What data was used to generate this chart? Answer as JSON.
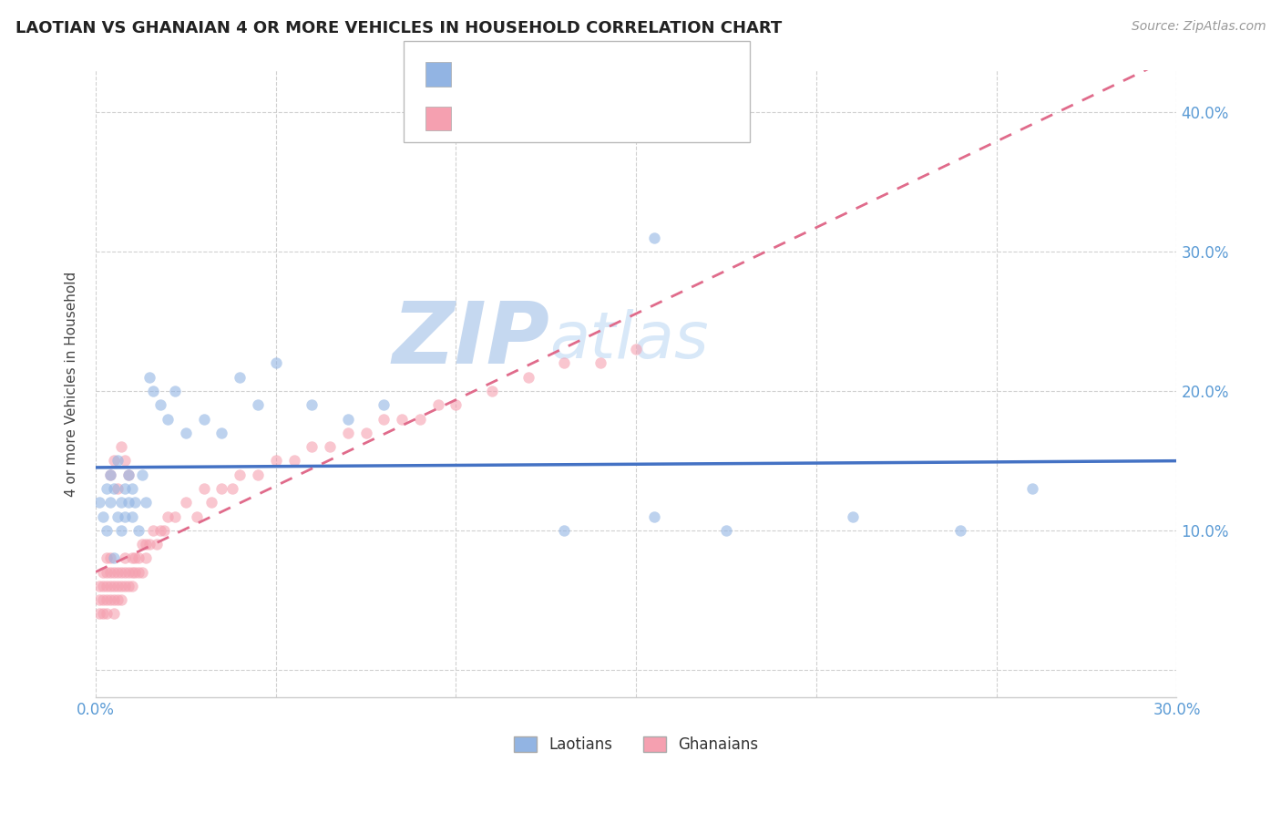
{
  "title": "LAOTIAN VS GHANAIAN 4 OR MORE VEHICLES IN HOUSEHOLD CORRELATION CHART",
  "source_text": "Source: ZipAtlas.com",
  "ylabel": "4 or more Vehicles in Household",
  "xlim": [
    0.0,
    0.3
  ],
  "ylim": [
    -0.02,
    0.43
  ],
  "xticks": [
    0.0,
    0.05,
    0.1,
    0.15,
    0.2,
    0.25,
    0.3
  ],
  "xtick_labels": [
    "0.0%",
    "",
    "",
    "",
    "",
    "",
    "30.0%"
  ],
  "yticks": [
    0.0,
    0.1,
    0.2,
    0.3,
    0.4
  ],
  "ytick_labels": [
    "",
    "10.0%",
    "20.0%",
    "30.0%",
    "40.0%"
  ],
  "laotian_color": "#92b4e3",
  "ghanaian_color": "#f5a0b0",
  "laotian_line_color": "#4472c4",
  "ghanaian_line_color": "#e06b8b",
  "watermark_zip_color": "#c5d8f0",
  "watermark_atlas_color": "#d8e8f8",
  "grid_color": "#d0d0d0",
  "background_color": "#ffffff",
  "laotian_x": [
    0.001,
    0.002,
    0.003,
    0.003,
    0.004,
    0.004,
    0.005,
    0.005,
    0.006,
    0.006,
    0.007,
    0.007,
    0.008,
    0.008,
    0.009,
    0.009,
    0.01,
    0.01,
    0.011,
    0.012,
    0.013,
    0.014,
    0.015,
    0.016,
    0.018,
    0.02,
    0.022,
    0.025,
    0.03,
    0.035,
    0.04,
    0.045,
    0.05,
    0.06,
    0.07,
    0.08,
    0.13,
    0.155,
    0.175,
    0.21,
    0.24,
    0.26,
    0.155
  ],
  "laotian_y": [
    0.12,
    0.11,
    0.13,
    0.1,
    0.12,
    0.14,
    0.08,
    0.13,
    0.11,
    0.15,
    0.12,
    0.1,
    0.13,
    0.11,
    0.12,
    0.14,
    0.11,
    0.13,
    0.12,
    0.1,
    0.14,
    0.12,
    0.21,
    0.2,
    0.19,
    0.18,
    0.2,
    0.17,
    0.18,
    0.17,
    0.21,
    0.19,
    0.22,
    0.19,
    0.18,
    0.19,
    0.1,
    0.11,
    0.1,
    0.11,
    0.1,
    0.13,
    0.31
  ],
  "ghanaian_x": [
    0.001,
    0.001,
    0.001,
    0.002,
    0.002,
    0.002,
    0.002,
    0.003,
    0.003,
    0.003,
    0.003,
    0.003,
    0.004,
    0.004,
    0.004,
    0.004,
    0.005,
    0.005,
    0.005,
    0.005,
    0.006,
    0.006,
    0.006,
    0.007,
    0.007,
    0.007,
    0.008,
    0.008,
    0.008,
    0.009,
    0.009,
    0.01,
    0.01,
    0.01,
    0.011,
    0.011,
    0.012,
    0.012,
    0.013,
    0.013,
    0.014,
    0.014,
    0.015,
    0.016,
    0.017,
    0.018,
    0.019,
    0.02,
    0.022,
    0.025,
    0.028,
    0.03,
    0.032,
    0.035,
    0.038,
    0.04,
    0.045,
    0.05,
    0.055,
    0.06,
    0.065,
    0.07,
    0.075,
    0.08,
    0.085,
    0.09,
    0.095,
    0.1,
    0.11,
    0.12,
    0.13,
    0.14,
    0.15,
    0.004,
    0.005,
    0.006,
    0.007,
    0.008,
    0.009
  ],
  "ghanaian_y": [
    0.05,
    0.04,
    0.06,
    0.04,
    0.05,
    0.06,
    0.07,
    0.04,
    0.05,
    0.06,
    0.07,
    0.08,
    0.05,
    0.06,
    0.07,
    0.08,
    0.04,
    0.05,
    0.06,
    0.07,
    0.05,
    0.06,
    0.07,
    0.05,
    0.06,
    0.07,
    0.06,
    0.07,
    0.08,
    0.06,
    0.07,
    0.06,
    0.07,
    0.08,
    0.07,
    0.08,
    0.07,
    0.08,
    0.07,
    0.09,
    0.08,
    0.09,
    0.09,
    0.1,
    0.09,
    0.1,
    0.1,
    0.11,
    0.11,
    0.12,
    0.11,
    0.13,
    0.12,
    0.13,
    0.13,
    0.14,
    0.14,
    0.15,
    0.15,
    0.16,
    0.16,
    0.17,
    0.17,
    0.18,
    0.18,
    0.18,
    0.19,
    0.19,
    0.2,
    0.21,
    0.22,
    0.22,
    0.23,
    0.14,
    0.15,
    0.13,
    0.16,
    0.15,
    0.14
  ]
}
